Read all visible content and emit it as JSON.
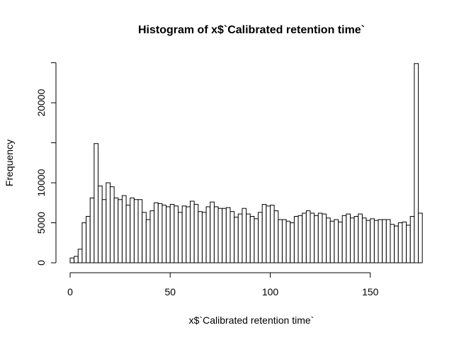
{
  "chart_data": {
    "type": "bar",
    "title": "Histogram of x$`Calibrated retention time`",
    "xlabel": "x$`Calibrated retention time`",
    "ylabel": "Frequency",
    "bin_width": 2,
    "bin_start": 0,
    "x_ticks": [
      0,
      50,
      100,
      150
    ],
    "y_ticks": [
      0,
      5000,
      10000,
      20000
    ],
    "xlim": [
      0,
      180
    ],
    "ylim": [
      0,
      25000
    ],
    "grid": false,
    "values": [
      600,
      800,
      1700,
      5000,
      5800,
      8100,
      14900,
      9600,
      7900,
      10000,
      9500,
      8100,
      7900,
      8400,
      7200,
      8100,
      7900,
      7900,
      6300,
      5400,
      6500,
      7500,
      7400,
      7200,
      7000,
      7300,
      7100,
      6300,
      7100,
      7000,
      7700,
      7300,
      6400,
      6300,
      7000,
      7600,
      7000,
      6800,
      6800,
      6900,
      6400,
      5700,
      6100,
      6800,
      6100,
      5800,
      5500,
      6300,
      7300,
      7100,
      7200,
      6500,
      5400,
      5400,
      5200,
      5000,
      5800,
      5900,
      6200,
      6500,
      6200,
      5900,
      6200,
      6100,
      5600,
      5200,
      5400,
      5100,
      5900,
      6100,
      5600,
      5800,
      6100,
      5600,
      5300,
      5500,
      5300,
      5400,
      5400,
      5400,
      4800,
      4600,
      5000,
      5100,
      4700,
      5800,
      24900,
      6200
    ]
  }
}
